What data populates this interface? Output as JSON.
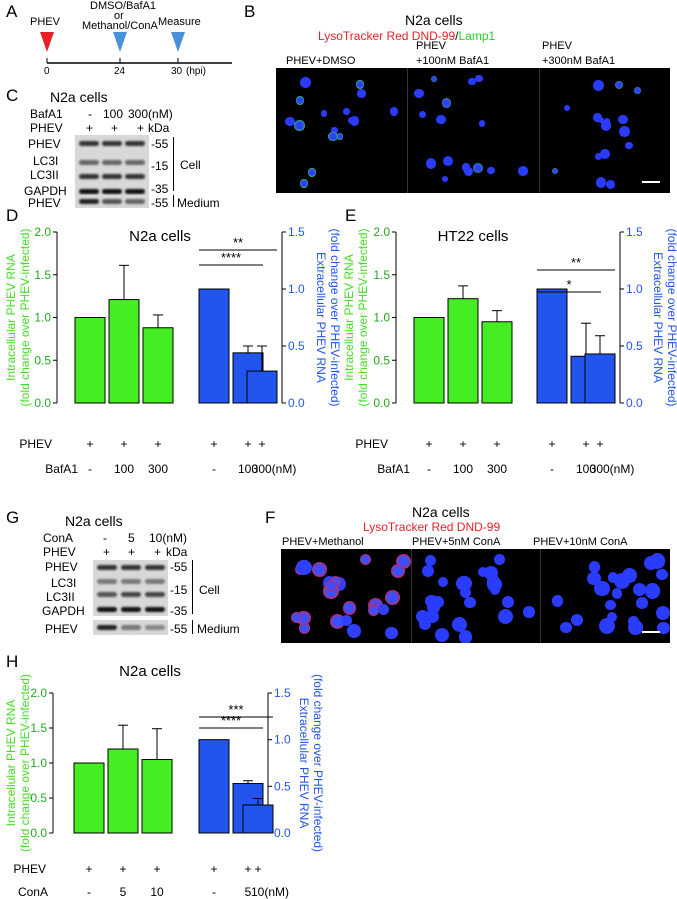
{
  "panels": {
    "A": "A",
    "B": "B",
    "C": "C",
    "D": "D",
    "E": "E",
    "F": "F",
    "G": "G",
    "H": "H"
  },
  "timeline": {
    "phev_label": "PHEV",
    "treat_label_1": "DMSO/BafA1",
    "treat_label_2": "or",
    "treat_label_3": "Methanol/ConA",
    "measure_label": "Measure",
    "ticks": [
      "0",
      "24",
      "30"
    ],
    "unit": "(hpi)",
    "colors": {
      "phev": "#e8202a",
      "treat": "#4a90d9",
      "measure": "#4a90d9"
    }
  },
  "panelB": {
    "title": "N2a cells",
    "stain_red": "LysoTracker Red DND-99",
    "stain_sep": "/",
    "stain_green": "Lamp1",
    "cond1": "PHEV+DMSO",
    "cond2a": "PHEV",
    "cond2b": "+100nM BafA1",
    "cond3a": "PHEV",
    "cond3b": "+300nM BafA1"
  },
  "panelC": {
    "title": "N2a cells",
    "row1_label": "BafA1",
    "row1_vals": [
      "-",
      "100",
      "300(nM)"
    ],
    "row2_label": "PHEV",
    "row2_vals": [
      "+",
      "+",
      "+"
    ],
    "kda": "kDa",
    "bands": [
      "PHEV",
      "LC3I",
      "LC3II",
      "GAPDH",
      "PHEV"
    ],
    "markers": [
      "-55",
      "-15",
      "-35",
      "-55"
    ],
    "cell": "Cell",
    "medium": "Medium"
  },
  "panelG": {
    "title": "N2a cells",
    "row1_label": "ConA",
    "row1_vals": [
      "-",
      "5",
      "10(nM)"
    ],
    "row2_label": "PHEV",
    "row2_vals": [
      "+",
      "+",
      "+"
    ],
    "kda": "kDa",
    "bands": [
      "PHEV",
      "LC3I",
      "LC3II",
      "GAPDH",
      "PHEV"
    ],
    "markers": [
      "-55",
      "-15",
      "-35",
      "-55"
    ],
    "cell": "Cell",
    "medium": "Medium"
  },
  "panelF": {
    "title": "N2a cells",
    "stain_red": "LysoTracker Red DND-99",
    "cond1": "PHEV+Methanol",
    "cond2": "PHEV+5nM ConA",
    "cond3": "PHEV+10nM ConA"
  },
  "chart_data": [
    {
      "id": "D",
      "type": "bar",
      "title": "N2a cells",
      "ylabel_left_1": "Intracellular PHEV RNA",
      "ylabel_left_2": "(fold change over PHEV-infected)",
      "ylabel_right_1": "Extracellular PHEV RNA",
      "ylabel_right_2": "(fold change over PHEV-infected)",
      "ylim_left": [
        0,
        2.0
      ],
      "yticks_left": [
        "0.0",
        "0.5",
        "1.0",
        "1.5",
        "2.0"
      ],
      "ylim_right": [
        0,
        1.5
      ],
      "yticks_right": [
        "0.0",
        "0.5",
        "1.0",
        "1.5"
      ],
      "left_series": {
        "color": "#44ee22",
        "values": [
          1.0,
          1.21,
          0.88
        ],
        "err": [
          0,
          0.4,
          0.15
        ]
      },
      "right_series": {
        "color": "#2255ee",
        "values": [
          1.0,
          0.44,
          0.28
        ],
        "err": [
          0,
          0.06,
          0.22
        ]
      },
      "sig": [
        "****",
        "**"
      ],
      "row1_label": "PHEV",
      "row1_vals": [
        "+",
        "+",
        "+",
        "+",
        "+",
        "+"
      ],
      "row2_label": "BafA1",
      "row2_vals": [
        "-",
        "100",
        "300",
        "-",
        "100",
        "300(nM)"
      ]
    },
    {
      "id": "E",
      "type": "bar",
      "title": "HT22 cells",
      "ylabel_left_1": "Intracellular PHEV RNA",
      "ylabel_left_2": "(fold change over PHEV-infected)",
      "ylabel_right_1": "Extracellular PHEV RNA",
      "ylabel_right_2": "(fold change over PHEV-infected)",
      "ylim_left": [
        0,
        2.0
      ],
      "yticks_left": [
        "0.0",
        "0.5",
        "1.0",
        "1.5",
        "2.0"
      ],
      "ylim_right": [
        0,
        1.5
      ],
      "yticks_right": [
        "0.0",
        "0.5",
        "1.0",
        "1.5"
      ],
      "left_series": {
        "color": "#44ee22",
        "values": [
          1.0,
          1.22,
          0.95
        ],
        "err": [
          0,
          0.15,
          0.13
        ]
      },
      "right_series": {
        "color": "#2255ee",
        "values": [
          1.0,
          0.41,
          0.43
        ],
        "err": [
          0,
          0.29,
          0.16
        ]
      },
      "sig": [
        "*",
        "**"
      ],
      "row1_label": "PHEV",
      "row1_vals": [
        "+",
        "+",
        "+",
        "+",
        "+",
        "+"
      ],
      "row2_label": "BafA1",
      "row2_vals": [
        "-",
        "100",
        "300",
        "-",
        "100",
        "300(nM)"
      ]
    },
    {
      "id": "H",
      "type": "bar",
      "title": "N2a cells",
      "ylabel_left_1": "Intracellular PHEV RNA",
      "ylabel_left_2": "(fold change over PHEV-infected)",
      "ylabel_right_1": "Extracellular PHEV RNA",
      "ylabel_right_2": "(fold change over PHEV-infected)",
      "ylim_left": [
        0,
        2.0
      ],
      "yticks_left": [
        "0.0",
        "0.5",
        "1.0",
        "1.5",
        "2.0"
      ],
      "ylim_right": [
        0,
        1.5
      ],
      "yticks_right": [
        "0.0",
        "0.5",
        "1.0",
        "1.5"
      ],
      "left_series": {
        "color": "#44ee22",
        "values": [
          1.0,
          1.2,
          1.05
        ],
        "err": [
          0,
          0.34,
          0.44
        ]
      },
      "right_series": {
        "color": "#2255ee",
        "values": [
          1.0,
          0.53,
          0.3
        ],
        "err": [
          0,
          0.03,
          0.07
        ]
      },
      "sig": [
        "****",
        "***"
      ],
      "row1_label": "PHEV",
      "row1_vals": [
        "+",
        "+",
        "+",
        "+",
        "+",
        "+"
      ],
      "row2_label": "ConA",
      "row2_vals": [
        "-",
        "5",
        "10",
        "-",
        "5",
        "10(nM)"
      ]
    }
  ]
}
